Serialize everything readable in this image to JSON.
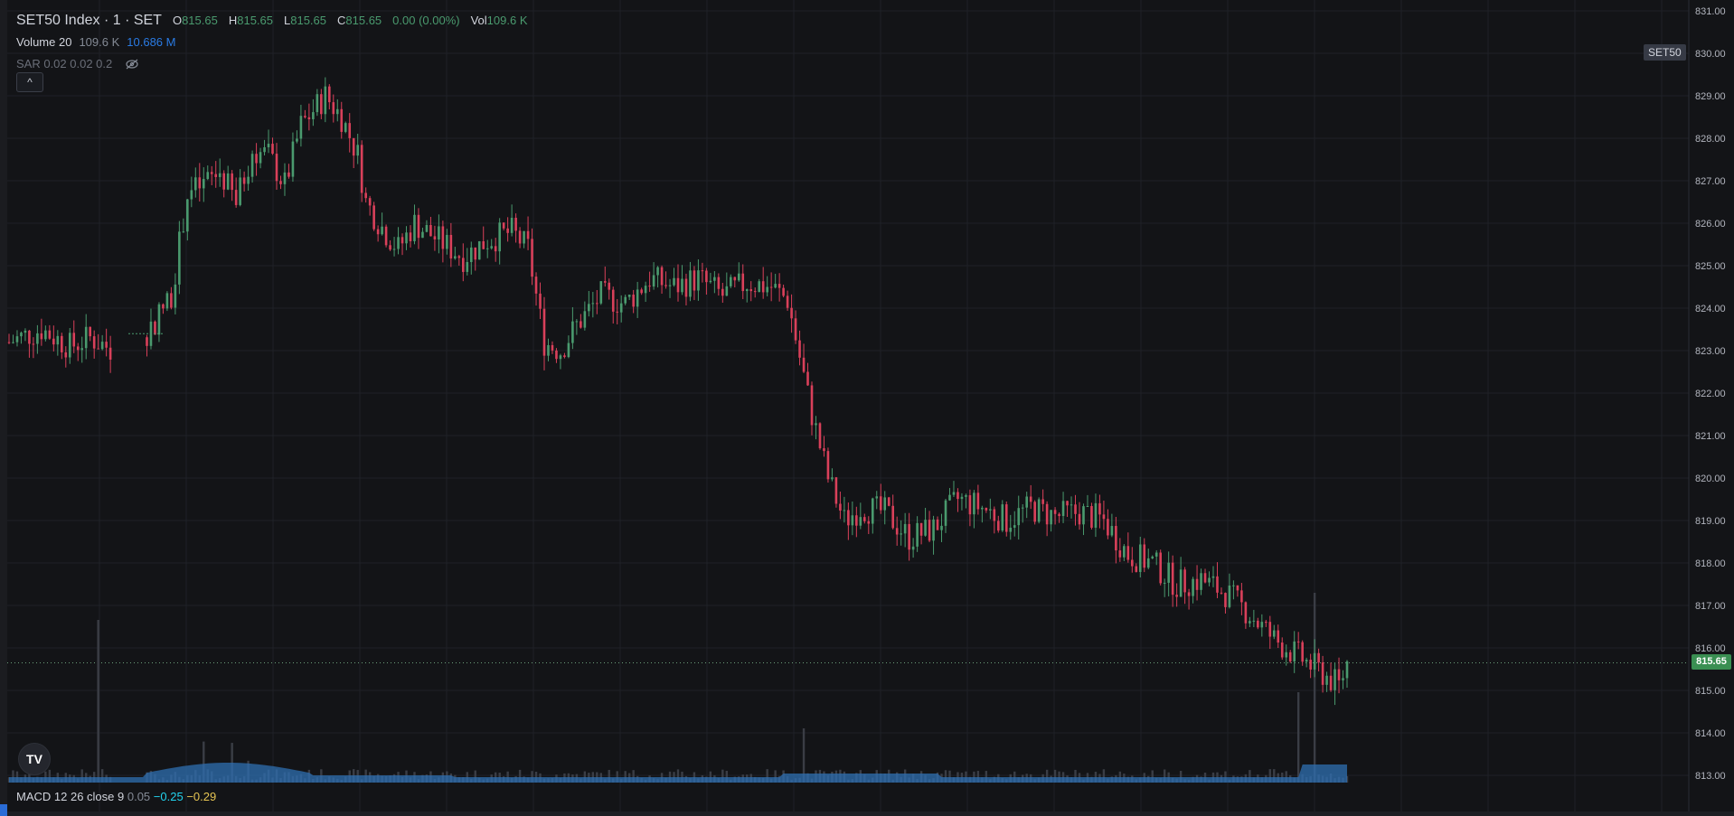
{
  "legend": {
    "symbol": "SET50 Index · 1 · SET",
    "o_label": "O",
    "o_val": "815.65",
    "h_label": "H",
    "h_val": "815.65",
    "l_label": "L",
    "l_val": "815.65",
    "c_label": "C",
    "c_val": "815.65",
    "change": "0.00 (0.00%)",
    "vol_label": "Vol",
    "vol_val": "109.6 K"
  },
  "indicators": {
    "volume_name": "Volume 20",
    "volume_val": "109.6 K",
    "volume_ma": "10.686 M",
    "sar_name": "SAR 0.02 0.02 0.2"
  },
  "collapse_glyph": "^",
  "symbol_badge": "SET50",
  "last_price": "815.65",
  "logo_text": "TV",
  "macd": {
    "name": "MACD 12 26 close 9",
    "hist": "0.05",
    "macd": "−0.25",
    "signal": "−0.29"
  },
  "colors": {
    "up": "#4a9a6e",
    "down": "#d9405a",
    "volume": "#2f6fb2",
    "grid": "#1f2127",
    "bg": "#131417"
  },
  "chart_data": {
    "type": "candlestick",
    "y_ticks": [
      "813.00",
      "814.00",
      "815.00",
      "816.00",
      "817.00",
      "818.00",
      "819.00",
      "820.00",
      "821.00",
      "822.00",
      "823.00",
      "824.00",
      "825.00",
      "826.00",
      "827.00",
      "828.00",
      "829.00",
      "830.00",
      "831.00"
    ],
    "ylim": [
      813,
      831
    ],
    "last_price": 815.65,
    "price_points": [
      [
        0,
        823.2
      ],
      [
        8,
        823.5
      ],
      [
        15,
        823.1
      ],
      [
        20,
        823.3
      ],
      [
        26,
        823.0
      ],
      [
        29,
        822.8
      ],
      [
        36,
        823.7
      ],
      [
        40,
        824.3
      ],
      [
        44,
        826.7
      ],
      [
        48,
        826.9
      ],
      [
        52,
        827.2
      ],
      [
        56,
        826.5
      ],
      [
        60,
        827.7
      ],
      [
        64,
        827.6
      ],
      [
        68,
        826.9
      ],
      [
        72,
        828.3
      ],
      [
        78,
        829.0
      ],
      [
        82,
        828.5
      ],
      [
        86,
        827.6
      ],
      [
        88,
        826.5
      ],
      [
        92,
        825.9
      ],
      [
        96,
        825.4
      ],
      [
        100,
        826.0
      ],
      [
        106,
        825.6
      ],
      [
        112,
        825.2
      ],
      [
        118,
        825.6
      ],
      [
        124,
        825.8
      ],
      [
        128,
        825.4
      ],
      [
        132,
        823.2
      ],
      [
        136,
        823.0
      ],
      [
        140,
        823.6
      ],
      [
        146,
        824.3
      ],
      [
        152,
        824.1
      ],
      [
        158,
        824.7
      ],
      [
        164,
        824.5
      ],
      [
        170,
        824.7
      ],
      [
        176,
        824.3
      ],
      [
        182,
        824.6
      ],
      [
        188,
        824.5
      ],
      [
        192,
        824.2
      ],
      [
        198,
        821.5
      ],
      [
        202,
        820.0
      ],
      [
        206,
        819.0
      ],
      [
        210,
        819.3
      ],
      [
        216,
        819.2
      ],
      [
        222,
        818.6
      ],
      [
        228,
        818.8
      ],
      [
        234,
        819.5
      ],
      [
        240,
        819.3
      ],
      [
        246,
        819.0
      ],
      [
        252,
        819.3
      ],
      [
        258,
        819.1
      ],
      [
        264,
        819.2
      ],
      [
        270,
        819.0
      ],
      [
        276,
        818.2
      ],
      [
        282,
        818.0
      ],
      [
        288,
        817.5
      ],
      [
        294,
        817.6
      ],
      [
        300,
        817.3
      ],
      [
        306,
        816.8
      ],
      [
        312,
        816.2
      ],
      [
        318,
        815.8
      ],
      [
        324,
        815.4
      ],
      [
        328,
        815.1
      ],
      [
        330,
        815.65
      ]
    ],
    "volume_ma_series": "area"
  }
}
